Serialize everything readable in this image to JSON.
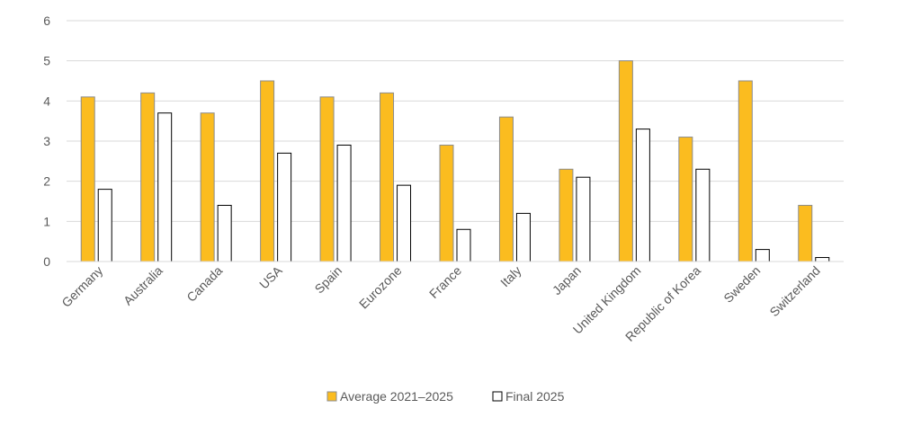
{
  "chart_data": {
    "type": "bar",
    "categories": [
      "Germany",
      "Australia",
      "Canada",
      "USA",
      "Spain",
      "Eurozone",
      "France",
      "Italy",
      "Japan",
      "United Kingdom",
      "Republic of Korea",
      "Sweden",
      "Switzerland"
    ],
    "series": [
      {
        "name": "Average 2021–2025",
        "color": "#fbbc1f",
        "stroke": "#8c8c8c",
        "values": [
          4.1,
          4.2,
          3.7,
          4.5,
          4.1,
          4.2,
          2.9,
          3.6,
          2.3,
          5.0,
          3.1,
          4.5,
          1.4
        ]
      },
      {
        "name": "Final 2025",
        "color": "#ffffff",
        "stroke": "#000000",
        "values": [
          1.8,
          3.7,
          1.4,
          2.7,
          2.9,
          1.9,
          0.8,
          1.2,
          2.1,
          3.3,
          2.3,
          0.3,
          0.1
        ]
      }
    ],
    "ylim": [
      0,
      6
    ],
    "yticks": [
      0,
      1,
      2,
      3,
      4,
      5,
      6
    ],
    "grid": true,
    "gridline_color": "#d9d9d9",
    "legend_position": "bottom",
    "title": "",
    "xlabel": "",
    "ylabel": ""
  }
}
